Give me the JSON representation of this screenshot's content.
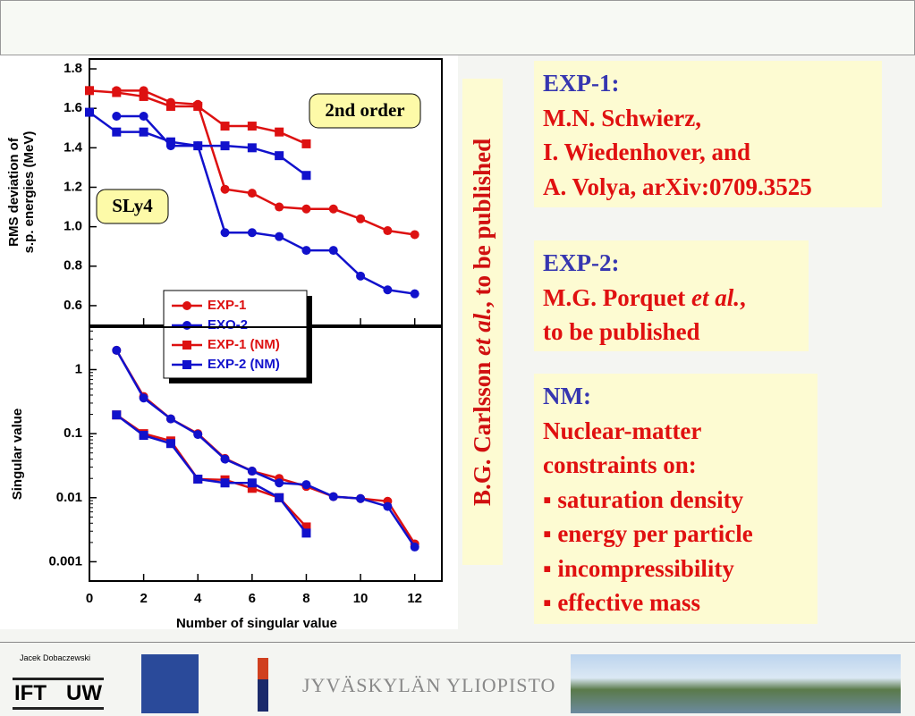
{
  "chart_data": [
    {
      "type": "line",
      "ylabel": [
        "RMS deviation of",
        "s.p. energies (MeV)"
      ],
      "annotations": [
        "2nd order",
        "SLy4"
      ],
      "xlim": [
        0,
        13
      ],
      "xticks": [
        0,
        2,
        4,
        6,
        8,
        10,
        12
      ],
      "ylim": [
        0.5,
        1.85
      ],
      "yticks": [
        0.6,
        0.8,
        {
          "value": 1,
          "label": "1.0"
        },
        1.2,
        1.4,
        1.6,
        1.8
      ],
      "series": [
        {
          "name": "EXP-1",
          "color": "#dd1111",
          "marker": "circle",
          "x": [
            1,
            2,
            3,
            4,
            5,
            6,
            7,
            8,
            9,
            10,
            11,
            12
          ],
          "values": [
            1.69,
            1.69,
            1.63,
            1.62,
            1.19,
            1.17,
            1.1,
            1.09,
            1.09,
            1.04,
            0.98,
            0.96
          ]
        },
        {
          "name": "EXO-2",
          "color": "#1111cc",
          "marker": "circle",
          "x": [
            1,
            2,
            3,
            4,
            5,
            6,
            7,
            8,
            9,
            10,
            11,
            12
          ],
          "values": [
            1.56,
            1.56,
            1.41,
            1.41,
            0.97,
            0.97,
            0.95,
            0.88,
            0.88,
            0.75,
            0.68,
            0.66
          ]
        },
        {
          "name": "EXP-1 (NM)",
          "color": "#dd1111",
          "marker": "square",
          "x": [
            0,
            1,
            2,
            3,
            4,
            5,
            6,
            7,
            8
          ],
          "values": [
            1.69,
            1.68,
            1.66,
            1.61,
            1.61,
            1.51,
            1.51,
            1.48,
            1.42
          ]
        },
        {
          "name": "EXP-2 (NM)",
          "color": "#1111cc",
          "marker": "square",
          "x": [
            0,
            1,
            2,
            3,
            4,
            5,
            6,
            7,
            8
          ],
          "values": [
            1.58,
            1.48,
            1.48,
            1.43,
            1.41,
            1.41,
            1.4,
            1.36,
            1.26
          ]
        }
      ]
    },
    {
      "type": "line",
      "log_y": true,
      "ylabel": "Singular value",
      "xlabel": "Number of singular value",
      "xlim": [
        0,
        13
      ],
      "xticks": [
        0,
        2,
        4,
        6,
        8,
        10,
        12
      ],
      "ylim": [
        0.0005,
        4.6
      ],
      "yticks": [
        0.001,
        0.01,
        0.1,
        1
      ],
      "series": [
        {
          "color": "#dd1111",
          "marker": "circle",
          "x": [
            1,
            2,
            3,
            4,
            5,
            6,
            7,
            8,
            9,
            10,
            11,
            12
          ],
          "values": [
            2.0,
            0.38,
            0.17,
            0.1,
            0.041,
            0.026,
            0.02,
            0.015,
            0.0104,
            0.0097,
            0.0088,
            0.0019
          ]
        },
        {
          "color": "#1111cc",
          "marker": "circle",
          "x": [
            1,
            2,
            3,
            4,
            5,
            6,
            7,
            8,
            9,
            10,
            11,
            12
          ],
          "values": [
            2.0,
            0.36,
            0.17,
            0.097,
            0.04,
            0.026,
            0.017,
            0.016,
            0.0104,
            0.0097,
            0.0073,
            0.0017
          ]
        },
        {
          "color": "#dd1111",
          "marker": "square",
          "x": [
            1,
            2,
            3,
            4,
            5,
            6,
            7,
            8
          ],
          "values": [
            0.196,
            0.1,
            0.077,
            0.0195,
            0.019,
            0.014,
            0.01,
            0.0035
          ]
        },
        {
          "color": "#1111cc",
          "marker": "square",
          "x": [
            1,
            2,
            3,
            4,
            5,
            6,
            7,
            8
          ],
          "values": [
            0.196,
            0.094,
            0.07,
            0.0195,
            0.017,
            0.017,
            0.01,
            0.0028
          ]
        }
      ]
    }
  ],
  "side_note": [
    "B.G. Carlsson ",
    "et al.",
    ", to be published"
  ],
  "exp1": {
    "title": "EXP-1:",
    "lines": [
      "M.N. Schwierz,",
      "I. Wiedenhover, and",
      "A. Volya, arXiv:0709.3525"
    ]
  },
  "exp2": {
    "title": "EXP-2:",
    "lines": [
      [
        "M.G. Porquet ",
        "et al.",
        ","
      ],
      "to be published"
    ]
  },
  "nm": {
    "title": "NM:",
    "lines": [
      "Nuclear-matter",
      "constraints on:",
      "▪ saturation density",
      "▪ energy per particle",
      "▪ incompressibility",
      "▪ effective mass"
    ]
  },
  "footer": {
    "author": "Jacek Dobaczewski",
    "logo_left": "IFT",
    "logo_right": "UW",
    "university": "JYVÄSKYLÄN YLIOPISTO"
  }
}
